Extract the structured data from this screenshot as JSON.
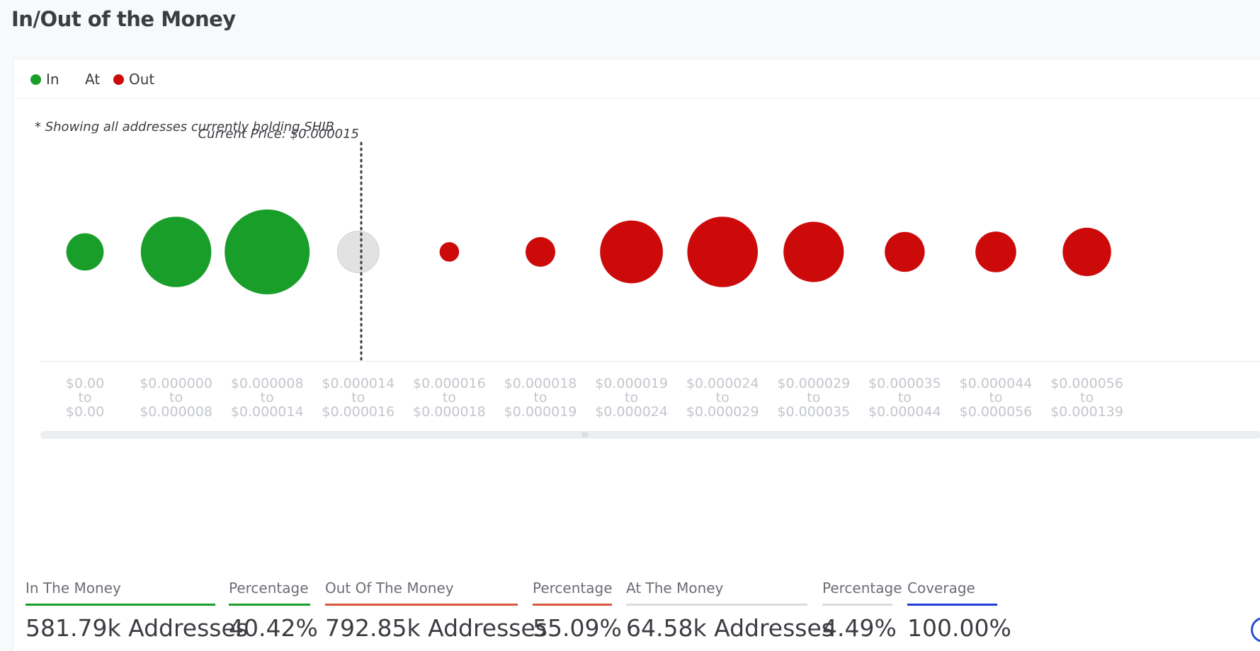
{
  "page": {
    "title": "In/Out of the Money"
  },
  "legend": [
    {
      "label": "In",
      "color": "#1a9e2a",
      "has_dot": true
    },
    {
      "label": "At",
      "color": "#dcdcdc",
      "has_dot": false
    },
    {
      "label": "Out",
      "color": "#cc0a0a",
      "has_dot": true
    }
  ],
  "note": "* Showing all addresses currently holding SHIB",
  "current_price_label": "Current Price: $0.000015",
  "chart_data": {
    "type": "bubble",
    "title": "In/Out of the Money",
    "current_price": 1.5e-05,
    "categories": [
      {
        "from": "$0.00",
        "to": "$0.00",
        "status": "in",
        "relative_size": 0.44
      },
      {
        "from": "$0.000000",
        "to": "$0.000008",
        "status": "in",
        "relative_size": 0.83
      },
      {
        "from": "$0.000008",
        "to": "$0.000014",
        "status": "in",
        "relative_size": 1.0
      },
      {
        "from": "$0.000014",
        "to": "$0.000016",
        "status": "at",
        "relative_size": 0.49
      },
      {
        "from": "$0.000016",
        "to": "$0.000018",
        "status": "out",
        "relative_size": 0.23
      },
      {
        "from": "$0.000018",
        "to": "$0.000019",
        "status": "out",
        "relative_size": 0.35
      },
      {
        "from": "$0.000019",
        "to": "$0.000024",
        "status": "out",
        "relative_size": 0.74
      },
      {
        "from": "$0.000024",
        "to": "$0.000029",
        "status": "out",
        "relative_size": 0.83
      },
      {
        "from": "$0.000029",
        "to": "$0.000035",
        "status": "out",
        "relative_size": 0.71
      },
      {
        "from": "$0.000035",
        "to": "$0.000044",
        "status": "out",
        "relative_size": 0.47
      },
      {
        "from": "$0.000044",
        "to": "$0.000056",
        "status": "out",
        "relative_size": 0.48
      },
      {
        "from": "$0.000056",
        "to": "$0.000139",
        "status": "out",
        "relative_size": 0.57
      }
    ],
    "colors": {
      "in": "#1a9e2a",
      "at": "#e2e2e2",
      "out": "#cc0a0a"
    },
    "tick_connector": "to"
  },
  "stats": [
    {
      "label": "In The Money",
      "value": "581.79k Addresses",
      "color": "#1a9e2a"
    },
    {
      "label": "Percentage",
      "value": "40.42%",
      "color": "#1a9e2a"
    },
    {
      "label": "Out Of The Money",
      "value": "792.85k Addresses",
      "color": "#d9553e"
    },
    {
      "label": "Percentage",
      "value": "55.09%",
      "color": "#d9553e"
    },
    {
      "label": "At The Money",
      "value": "64.58k Addresses",
      "color": "#dcdcdc"
    },
    {
      "label": "Percentage",
      "value": "4.49%",
      "color": "#dcdcdc"
    },
    {
      "label": "Coverage",
      "value": "100.00%",
      "color": "#1f3fd6"
    }
  ]
}
